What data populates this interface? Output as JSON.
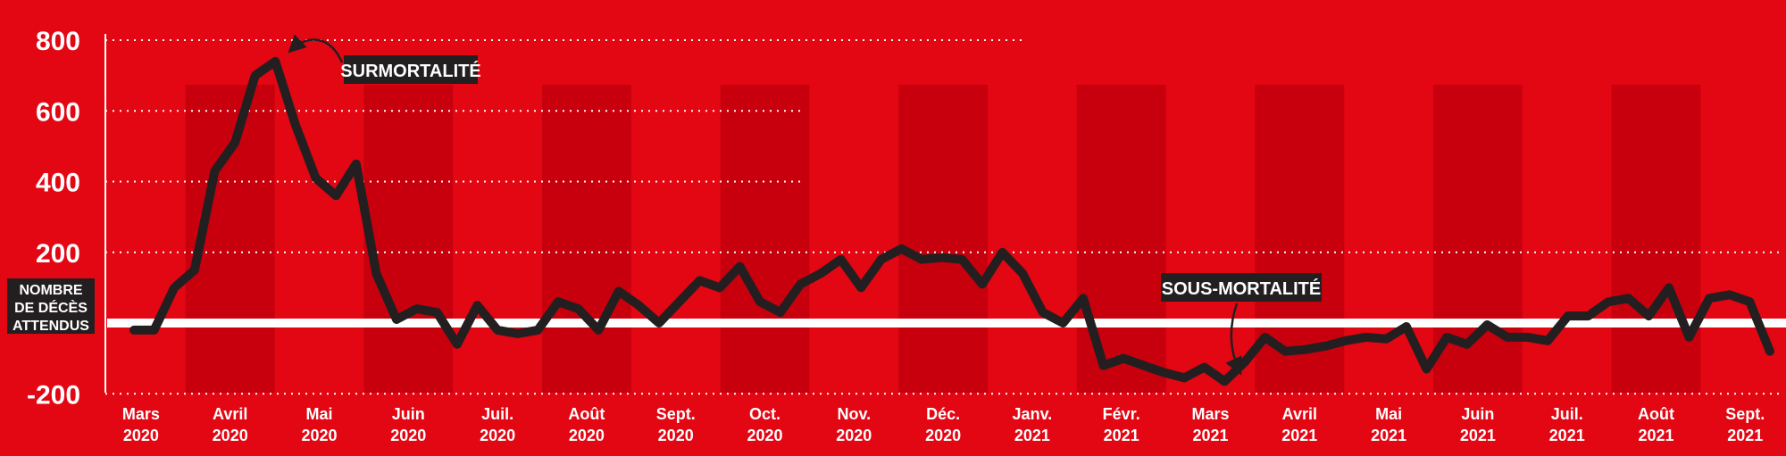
{
  "chart_data": {
    "type": "line",
    "title": "",
    "xlabel": "",
    "ylabel": "",
    "ylim": [
      -200,
      800
    ],
    "yticks": [
      800,
      600,
      400,
      200,
      -200
    ],
    "grid": true,
    "baseline_label": [
      "NOMBRE",
      "DE DÉCÈS",
      "ATTENDUS"
    ],
    "annotations": [
      {
        "text": "SURMORTALITÉ"
      },
      {
        "text": "SOUS-MORTALITÉ"
      }
    ],
    "months": [
      [
        "Mars",
        "2020"
      ],
      [
        "Avril",
        "2020"
      ],
      [
        "Mai",
        "2020"
      ],
      [
        "Juin",
        "2020"
      ],
      [
        "Juil.",
        "2020"
      ],
      [
        "Août",
        "2020"
      ],
      [
        "Sept.",
        "2020"
      ],
      [
        "Oct.",
        "2020"
      ],
      [
        "Nov.",
        "2020"
      ],
      [
        "Déc.",
        "2020"
      ],
      [
        "Janv.",
        "2021"
      ],
      [
        "Févr.",
        "2021"
      ],
      [
        "Mars",
        "2021"
      ],
      [
        "Avril",
        "2021"
      ],
      [
        "Mai",
        "2021"
      ],
      [
        "Juin",
        "2021"
      ],
      [
        "Juil.",
        "2021"
      ],
      [
        "Août",
        "2021"
      ],
      [
        "Sept.",
        "2021"
      ]
    ],
    "series": [
      {
        "values": [
          -20,
          -20,
          100,
          150,
          430,
          510,
          700,
          740,
          560,
          410,
          360,
          450,
          140,
          10,
          40,
          30,
          -60,
          50,
          -20,
          -30,
          -20,
          60,
          40,
          -20,
          90,
          50,
          0,
          60,
          120,
          100,
          160,
          60,
          30,
          110,
          140,
          180,
          100,
          180,
          210,
          180,
          185,
          180,
          110,
          200,
          140,
          30,
          0,
          70,
          -120,
          -100,
          -120,
          -140,
          -155,
          -125,
          -165,
          -110,
          -40,
          -80,
          -75,
          -65,
          -50,
          -40,
          -45,
          -10,
          -130,
          -40,
          -60,
          -5,
          -40,
          -40,
          -50,
          20,
          20,
          60,
          70,
          20,
          100,
          -40,
          70,
          80,
          60,
          -80
        ]
      }
    ]
  }
}
